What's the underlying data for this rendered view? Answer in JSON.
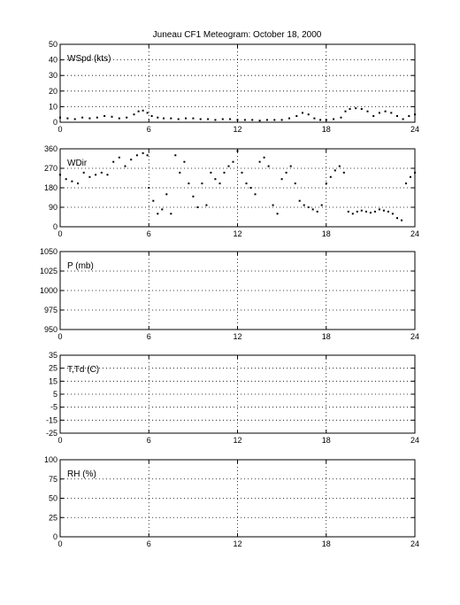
{
  "title": "Juneau CF1 Meteogram:    October 18, 2000",
  "chart_data": [
    {
      "type": "scatter",
      "label": "WSpd (kts)",
      "xlim": [
        0,
        24
      ],
      "xticks": [
        "0",
        "6",
        "12",
        "18",
        "24"
      ],
      "ylim": [
        0,
        50
      ],
      "yticks": [
        "0",
        "10",
        "20",
        "30",
        "40",
        "50"
      ],
      "grid": true,
      "series": [
        {
          "values": [
            [
              0.0,
              3
            ],
            [
              0.5,
              2.5
            ],
            [
              1.0,
              2
            ],
            [
              1.5,
              3
            ],
            [
              2.0,
              2.5
            ],
            [
              2.5,
              3
            ],
            [
              3.0,
              4
            ],
            [
              3.5,
              3.5
            ],
            [
              4.0,
              2.5
            ],
            [
              4.5,
              3
            ],
            [
              5.0,
              5
            ],
            [
              5.3,
              7
            ],
            [
              5.6,
              7.5
            ],
            [
              5.9,
              6
            ],
            [
              6.2,
              4
            ],
            [
              6.6,
              3
            ],
            [
              7.0,
              2.5
            ],
            [
              7.5,
              2.5
            ],
            [
              8.0,
              2
            ],
            [
              8.5,
              2.5
            ],
            [
              9.0,
              2.5
            ],
            [
              9.5,
              2
            ],
            [
              10.0,
              2
            ],
            [
              10.5,
              1.5
            ],
            [
              11.0,
              2
            ],
            [
              11.5,
              2
            ],
            [
              12.0,
              1.5
            ],
            [
              12.5,
              1.5
            ],
            [
              13.0,
              1.5
            ],
            [
              13.5,
              1
            ],
            [
              14.0,
              1.5
            ],
            [
              14.5,
              1.5
            ],
            [
              15.0,
              1.5
            ],
            [
              15.5,
              2.5
            ],
            [
              16.0,
              4
            ],
            [
              16.4,
              6
            ],
            [
              16.8,
              5
            ],
            [
              17.2,
              2.5
            ],
            [
              17.6,
              1.5
            ],
            [
              18.0,
              1.5
            ],
            [
              18.5,
              2
            ],
            [
              19.0,
              3
            ],
            [
              19.3,
              7
            ],
            [
              19.6,
              8.5
            ],
            [
              20.0,
              9
            ],
            [
              20.4,
              8.5
            ],
            [
              20.8,
              7
            ],
            [
              21.2,
              4
            ],
            [
              21.6,
              6
            ],
            [
              22.0,
              7
            ],
            [
              22.4,
              6
            ],
            [
              22.8,
              4
            ],
            [
              23.2,
              2
            ],
            [
              23.6,
              4
            ],
            [
              24.0,
              5
            ]
          ]
        }
      ]
    },
    {
      "type": "scatter",
      "label": "WDir",
      "xlim": [
        0,
        24
      ],
      "xticks": [
        "0",
        "6",
        "12",
        "18",
        "24"
      ],
      "ylim": [
        0,
        360
      ],
      "yticks": [
        "0",
        "90",
        "180",
        "270",
        "360"
      ],
      "grid": true,
      "series": [
        {
          "values": [
            [
              0.0,
              240
            ],
            [
              0.4,
              220
            ],
            [
              0.8,
              210
            ],
            [
              1.2,
              200
            ],
            [
              1.6,
              250
            ],
            [
              2.0,
              230
            ],
            [
              2.4,
              240
            ],
            [
              2.8,
              250
            ],
            [
              3.2,
              240
            ],
            [
              3.6,
              300
            ],
            [
              4.0,
              320
            ],
            [
              4.4,
              280
            ],
            [
              4.8,
              310
            ],
            [
              5.2,
              330
            ],
            [
              5.6,
              340
            ],
            [
              5.9,
              330
            ],
            [
              6.0,
              180
            ],
            [
              6.3,
              120
            ],
            [
              6.6,
              60
            ],
            [
              6.9,
              80
            ],
            [
              7.2,
              150
            ],
            [
              7.5,
              60
            ],
            [
              7.8,
              330
            ],
            [
              8.1,
              250
            ],
            [
              8.4,
              300
            ],
            [
              8.7,
              200
            ],
            [
              9.0,
              140
            ],
            [
              9.3,
              90
            ],
            [
              9.6,
              200
            ],
            [
              9.9,
              100
            ],
            [
              10.2,
              250
            ],
            [
              10.5,
              220
            ],
            [
              10.8,
              200
            ],
            [
              11.1,
              250
            ],
            [
              11.4,
              280
            ],
            [
              11.7,
              300
            ],
            [
              12.0,
              350
            ],
            [
              12.3,
              250
            ],
            [
              12.6,
              200
            ],
            [
              12.9,
              180
            ],
            [
              13.2,
              150
            ],
            [
              13.5,
              300
            ],
            [
              13.8,
              320
            ],
            [
              14.1,
              280
            ],
            [
              14.4,
              100
            ],
            [
              14.7,
              60
            ],
            [
              15.0,
              220
            ],
            [
              15.3,
              250
            ],
            [
              15.6,
              280
            ],
            [
              15.9,
              200
            ],
            [
              16.2,
              120
            ],
            [
              16.5,
              100
            ],
            [
              16.8,
              90
            ],
            [
              17.1,
              80
            ],
            [
              17.4,
              70
            ],
            [
              17.7,
              100
            ],
            [
              18.0,
              200
            ],
            [
              18.3,
              230
            ],
            [
              18.6,
              260
            ],
            [
              18.9,
              280
            ],
            [
              19.2,
              250
            ],
            [
              19.5,
              70
            ],
            [
              19.8,
              60
            ],
            [
              20.1,
              70
            ],
            [
              20.4,
              75
            ],
            [
              20.7,
              70
            ],
            [
              21.0,
              65
            ],
            [
              21.3,
              70
            ],
            [
              21.6,
              80
            ],
            [
              21.9,
              75
            ],
            [
              22.2,
              70
            ],
            [
              22.5,
              60
            ],
            [
              22.8,
              40
            ],
            [
              23.1,
              30
            ],
            [
              23.4,
              200
            ],
            [
              23.7,
              230
            ],
            [
              24.0,
              250
            ]
          ]
        }
      ]
    },
    {
      "type": "scatter",
      "label": "P (mb)",
      "xlim": [
        0,
        24
      ],
      "xticks": [
        "0",
        "6",
        "12",
        "18",
        "24"
      ],
      "ylim": [
        950,
        1050
      ],
      "yticks": [
        "950",
        "975",
        "1000",
        "1025",
        "1050"
      ],
      "grid": true,
      "series": []
    },
    {
      "type": "scatter",
      "label": "T,Td (C)",
      "xlim": [
        0,
        24
      ],
      "xticks": [
        "0",
        "6",
        "12",
        "18",
        "24"
      ],
      "ylim": [
        -25,
        35
      ],
      "yticks": [
        "-25",
        "-15",
        "-5",
        "5",
        "15",
        "25",
        "35"
      ],
      "grid": true,
      "series": []
    },
    {
      "type": "scatter",
      "label": "RH (%)",
      "xlim": [
        0,
        24
      ],
      "xticks": [
        "0",
        "6",
        "12",
        "18",
        "24"
      ],
      "ylim": [
        0,
        100
      ],
      "yticks": [
        "0",
        "25",
        "50",
        "75",
        "100"
      ],
      "grid": true,
      "series": []
    }
  ]
}
